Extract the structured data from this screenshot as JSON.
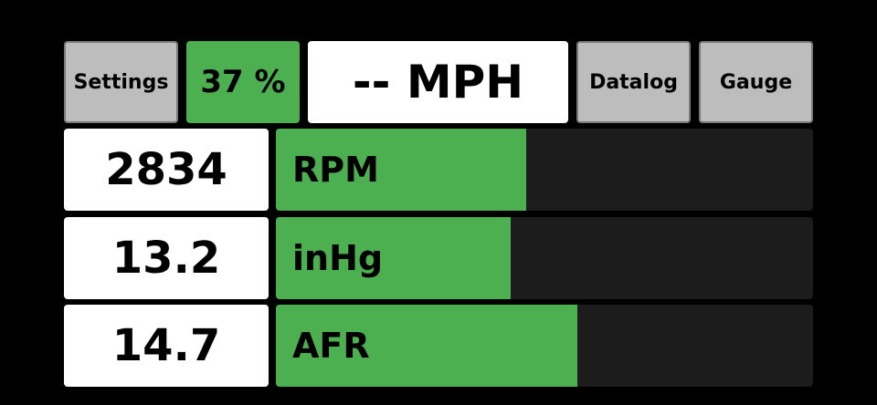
{
  "toolbar": {
    "settings_label": "Settings",
    "throttle_label": "37 %",
    "speed_label": "-- MPH",
    "datalog_label": "Datalog",
    "gauge_label": "Gauge"
  },
  "rows": [
    {
      "value": "2834",
      "label": "RPM",
      "fill_fraction": 0.466
    },
    {
      "value": "13.2",
      "label": "inHg",
      "fill_fraction": 0.437
    },
    {
      "value": "14.7",
      "label": "AFR",
      "fill_fraction": 0.561
    }
  ],
  "colors": {
    "accent": "#4caf50",
    "button": "#bdbdbd",
    "track": "#1c1c1c"
  }
}
